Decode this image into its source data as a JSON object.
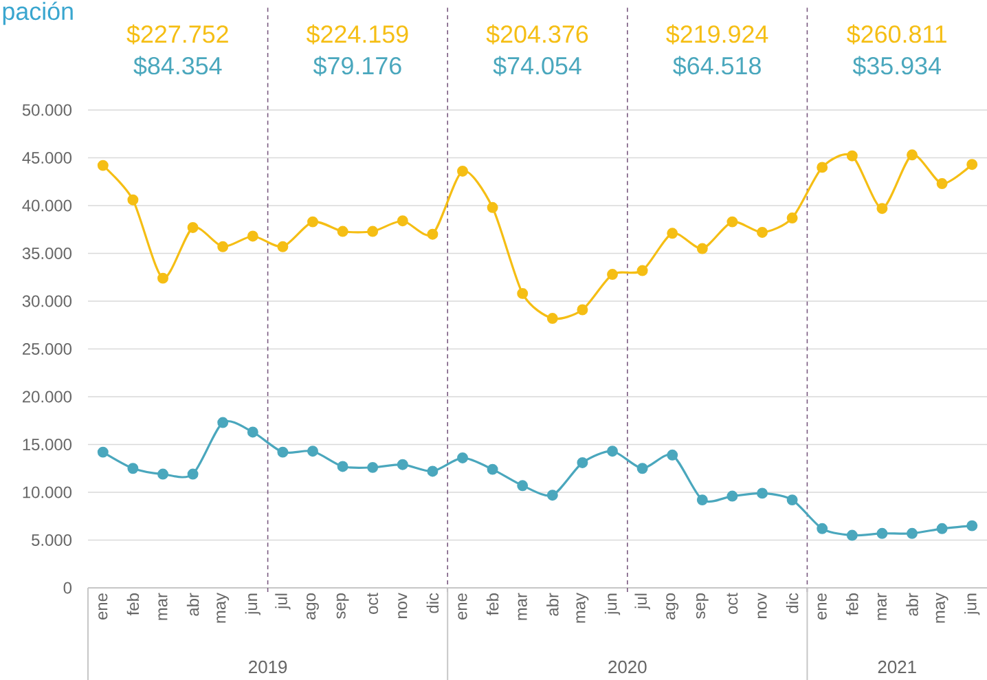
{
  "chart_data": {
    "type": "line",
    "title": "pación",
    "categories": [
      "ene",
      "feb",
      "mar",
      "abr",
      "may",
      "jun",
      "jul",
      "ago",
      "sep",
      "oct",
      "nov",
      "dic",
      "ene",
      "feb",
      "mar",
      "abr",
      "may",
      "jun",
      "jul",
      "ago",
      "sep",
      "oct",
      "nov",
      "dic",
      "ene",
      "feb",
      "mar",
      "abr",
      "may",
      "jun"
    ],
    "series": [
      {
        "color": "#f5be14",
        "values": [
          44200,
          40600,
          32400,
          37700,
          35700,
          36800,
          35700,
          38300,
          37300,
          37300,
          38400,
          37000,
          43600,
          39800,
          30800,
          28200,
          29100,
          32800,
          33200,
          37100,
          35500,
          38300,
          37200,
          38700,
          44000,
          45200,
          39700,
          45300,
          42300,
          44300
        ]
      },
      {
        "color": "#4aa7bd",
        "values": [
          14200,
          12500,
          11900,
          11900,
          17300,
          16300,
          14200,
          14300,
          12700,
          12600,
          12900,
          12200,
          13600,
          12400,
          10700,
          9700,
          13100,
          14300,
          12500,
          13900,
          9200,
          9600,
          9900,
          9200,
          6200,
          5500,
          5700,
          5700,
          6200,
          6500
        ]
      }
    ],
    "ylim": [
      0,
      50000
    ],
    "yticks": [
      {
        "value": 0,
        "label": "0"
      },
      {
        "value": 5000,
        "label": "5.000"
      },
      {
        "value": 10000,
        "label": "10.000"
      },
      {
        "value": 15000,
        "label": "15.000"
      },
      {
        "value": 20000,
        "label": "20.000"
      },
      {
        "value": 25000,
        "label": "25.000"
      },
      {
        "value": 30000,
        "label": "30.000"
      },
      {
        "value": 35000,
        "label": "35.000"
      },
      {
        "value": 40000,
        "label": "40.000"
      },
      {
        "value": 45000,
        "label": "45.000"
      },
      {
        "value": 50000,
        "label": "50.000"
      }
    ],
    "grid": "y",
    "marker": "circle",
    "line_style": "solid",
    "annotations": [
      "$227.752",
      "$84.354",
      "$224.159",
      "$79.176",
      "$204.376",
      "$74.054",
      "$219.924",
      "$64.518",
      "$260.811",
      "$35.934",
      "2019",
      "2020",
      "2021"
    ]
  }
}
